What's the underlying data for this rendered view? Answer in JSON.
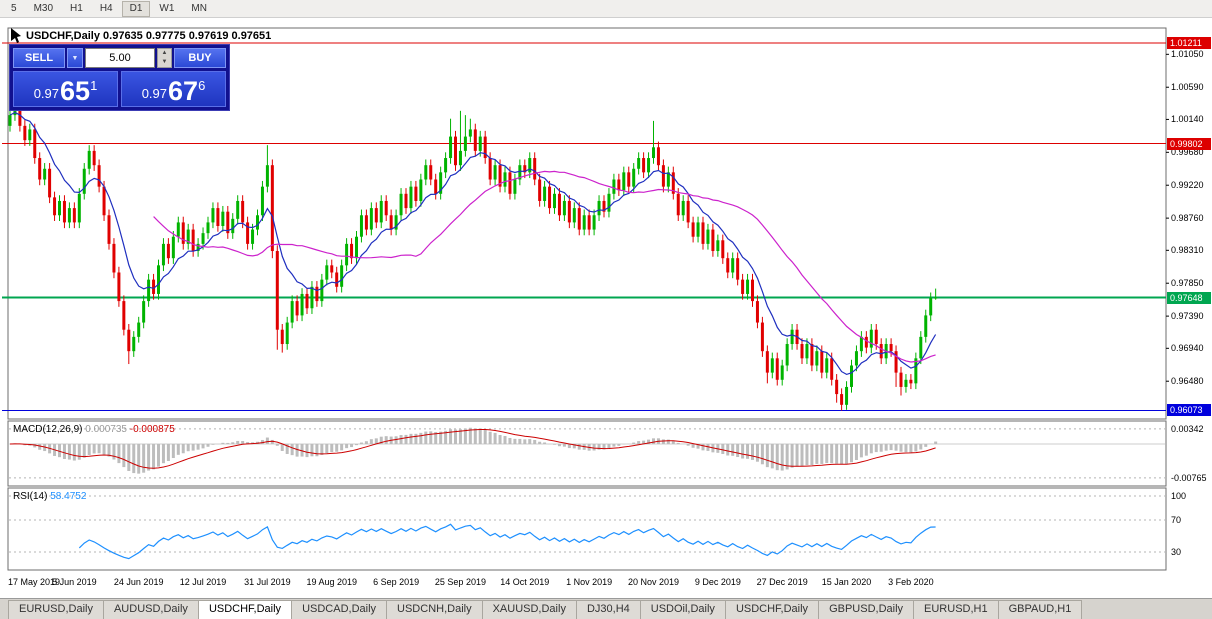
{
  "toolbar": {
    "timeframes": [
      "5",
      "M30",
      "H1",
      "H4",
      "D1",
      "W1",
      "MN"
    ],
    "active": "D1"
  },
  "chart": {
    "symbol_period": "USDCHF,Daily",
    "open": "0.97635",
    "high": "0.97775",
    "low": "0.97619",
    "close": "0.97651"
  },
  "trade_panel": {
    "sell_label": "SELL",
    "buy_label": "BUY",
    "volume": "5.00",
    "sell_price": {
      "prefix": "0.97",
      "big": "65",
      "sup": "1"
    },
    "buy_price": {
      "prefix": "0.97",
      "big": "67",
      "sup": "6"
    }
  },
  "icons": {
    "dropdown": "▼",
    "spin_up": "▲",
    "spin_down": "▼"
  },
  "price_axis": {
    "ticks": [
      "1.01050",
      "1.00590",
      "1.00140",
      "0.99680",
      "0.99220",
      "0.98760",
      "0.98310",
      "0.97850",
      "0.97390",
      "0.96940",
      "0.96480"
    ]
  },
  "hlines": [
    {
      "price": 1.01211,
      "label": "1.01211",
      "color": "#dd0000",
      "width": 1
    },
    {
      "price": 0.99802,
      "label": "0.99802",
      "color": "#dd0000",
      "width": 1
    },
    {
      "price": 0.97648,
      "label": "0.97648",
      "color": "#00a650",
      "width": 2
    },
    {
      "price": 0.96073,
      "label": "0.96073",
      "color": "#0000dd",
      "width": 1
    }
  ],
  "macd": {
    "label": "MACD(12,26,9)",
    "main_value": "0.000735",
    "signal_value": "-0.000875",
    "fast": 12,
    "slow": 26,
    "signal": 9,
    "histogram_color": "#bdbdbd",
    "signal_color": "#cc0000",
    "axis_labels": [
      {
        "value": 0.00342,
        "label": "0.00342"
      },
      {
        "value": -0.00765,
        "label": "-0.00765"
      }
    ]
  },
  "rsi": {
    "label": "RSI(14)",
    "value": "58.4752",
    "period": 14,
    "color": "#1e90ff",
    "levels": [
      {
        "value": 100,
        "label": "100"
      },
      {
        "value": 70,
        "label": "70"
      },
      {
        "value": 30,
        "label": "30"
      }
    ]
  },
  "tabs": [
    "EURUSD,Daily",
    "AUDUSD,Daily",
    "USDCHF,Daily",
    "USDCAD,Daily",
    "USDCNH,Daily",
    "XAUUSD,Daily",
    "DJ30,H4",
    "USDOil,Daily",
    "USDCHF,Daily",
    "GBPUSD,Daily",
    "EURUSD,H1",
    "GBPAUD,H1"
  ],
  "active_tab_index": 2,
  "chart_data": {
    "type": "candlestick",
    "symbol": "USDCHF",
    "period": "Daily",
    "up_color": "#00b300",
    "down_color": "#e00000",
    "ma": [
      {
        "period": 10,
        "method": "ema",
        "color": "#1f2fbf"
      },
      {
        "period": 30,
        "method": "sma",
        "color": "#cc22cc"
      }
    ],
    "x_labels": [
      {
        "i": 0,
        "label": "17 May 2019"
      },
      {
        "i": 13,
        "label": "5 Jun 2019"
      },
      {
        "i": 26,
        "label": "24 Jun 2019"
      },
      {
        "i": 39,
        "label": "12 Jul 2019"
      },
      {
        "i": 52,
        "label": "31 Jul 2019"
      },
      {
        "i": 65,
        "label": "19 Aug 2019"
      },
      {
        "i": 78,
        "label": "6 Sep 2019"
      },
      {
        "i": 91,
        "label": "25 Sep 2019"
      },
      {
        "i": 104,
        "label": "14 Oct 2019"
      },
      {
        "i": 117,
        "label": "1 Nov 2019"
      },
      {
        "i": 130,
        "label": "20 Nov 2019"
      },
      {
        "i": 143,
        "label": "9 Dec 2019"
      },
      {
        "i": 156,
        "label": "27 Dec 2019"
      },
      {
        "i": 169,
        "label": "15 Jan 2020"
      },
      {
        "i": 182,
        "label": "3 Feb 2020"
      }
    ],
    "candles": [
      [
        1.0005,
        1.0028,
        0.9997,
        1.002
      ],
      [
        1.002,
        1.0048,
        1.0012,
        1.004
      ],
      [
        1.004,
        1.0048,
        0.9997,
        1.0005
      ],
      [
        1.0005,
        1.0013,
        0.9977,
        0.9985
      ],
      [
        0.9985,
        1.0008,
        0.9977,
        1.0
      ],
      [
        1.0,
        1.0008,
        0.9952,
        0.996
      ],
      [
        0.996,
        0.9968,
        0.9922,
        0.993
      ],
      [
        0.993,
        0.9953,
        0.9922,
        0.9945
      ],
      [
        0.9945,
        0.9953,
        0.9897,
        0.9905
      ],
      [
        0.9905,
        0.9913,
        0.9872,
        0.988
      ],
      [
        0.988,
        0.9908,
        0.9872,
        0.99
      ],
      [
        0.99,
        0.9908,
        0.9862,
        0.987
      ],
      [
        0.987,
        0.9898,
        0.9862,
        0.989
      ],
      [
        0.989,
        0.9898,
        0.9862,
        0.987
      ],
      [
        0.987,
        0.9918,
        0.9862,
        0.991
      ],
      [
        0.991,
        0.9953,
        0.9902,
        0.9945
      ],
      [
        0.9945,
        0.9978,
        0.9937,
        0.997
      ],
      [
        0.997,
        0.9978,
        0.9942,
        0.995
      ],
      [
        0.995,
        0.9958,
        0.9912,
        0.992
      ],
      [
        0.992,
        0.9928,
        0.9872,
        0.988
      ],
      [
        0.988,
        0.9888,
        0.9832,
        0.984
      ],
      [
        0.984,
        0.9848,
        0.9792,
        0.98
      ],
      [
        0.98,
        0.9808,
        0.9752,
        0.976
      ],
      [
        0.976,
        0.9768,
        0.9712,
        0.972
      ],
      [
        0.972,
        0.9728,
        0.9672,
        0.969
      ],
      [
        0.969,
        0.9718,
        0.9682,
        0.971
      ],
      [
        0.971,
        0.9738,
        0.9702,
        0.973
      ],
      [
        0.973,
        0.9768,
        0.9722,
        0.976
      ],
      [
        0.976,
        0.9798,
        0.9752,
        0.979
      ],
      [
        0.979,
        0.9798,
        0.9762,
        0.977
      ],
      [
        0.977,
        0.9818,
        0.9762,
        0.981
      ],
      [
        0.981,
        0.9848,
        0.9802,
        0.984
      ],
      [
        0.984,
        0.9848,
        0.9812,
        0.982
      ],
      [
        0.982,
        0.9858,
        0.9812,
        0.985
      ],
      [
        0.985,
        0.9878,
        0.9842,
        0.987
      ],
      [
        0.987,
        0.9878,
        0.9832,
        0.984
      ],
      [
        0.984,
        0.9868,
        0.9832,
        0.986
      ],
      [
        0.986,
        0.9868,
        0.9822,
        0.983
      ],
      [
        0.983,
        0.9848,
        0.9822,
        0.984
      ],
      [
        0.984,
        0.9863,
        0.9832,
        0.9855
      ],
      [
        0.9855,
        0.9878,
        0.9847,
        0.987
      ],
      [
        0.987,
        0.9898,
        0.9862,
        0.989
      ],
      [
        0.989,
        0.9898,
        0.9857,
        0.9865
      ],
      [
        0.9865,
        0.9893,
        0.9857,
        0.9885
      ],
      [
        0.9885,
        0.9893,
        0.9847,
        0.9855
      ],
      [
        0.9855,
        0.9883,
        0.9847,
        0.9875
      ],
      [
        0.9875,
        0.9908,
        0.9867,
        0.99
      ],
      [
        0.99,
        0.9908,
        0.9862,
        0.987
      ],
      [
        0.987,
        0.9878,
        0.9832,
        0.984
      ],
      [
        0.984,
        0.9868,
        0.9832,
        0.986
      ],
      [
        0.986,
        0.9888,
        0.9852,
        0.988
      ],
      [
        0.988,
        0.9928,
        0.9872,
        0.992
      ],
      [
        0.992,
        0.9978,
        0.9912,
        0.995
      ],
      [
        0.995,
        0.9958,
        0.982,
        0.983
      ],
      [
        0.983,
        0.9838,
        0.9692,
        0.972
      ],
      [
        0.972,
        0.9728,
        0.9688,
        0.97
      ],
      [
        0.97,
        0.9738,
        0.9692,
        0.973
      ],
      [
        0.973,
        0.9768,
        0.9722,
        0.976
      ],
      [
        0.976,
        0.9768,
        0.9732,
        0.974
      ],
      [
        0.974,
        0.9778,
        0.9732,
        0.977
      ],
      [
        0.977,
        0.9778,
        0.9742,
        0.975
      ],
      [
        0.975,
        0.9788,
        0.9742,
        0.978
      ],
      [
        0.978,
        0.9788,
        0.9752,
        0.976
      ],
      [
        0.976,
        0.9798,
        0.9752,
        0.979
      ],
      [
        0.979,
        0.9818,
        0.9782,
        0.981
      ],
      [
        0.981,
        0.9818,
        0.9792,
        0.98
      ],
      [
        0.98,
        0.9808,
        0.9772,
        0.978
      ],
      [
        0.978,
        0.9818,
        0.9772,
        0.981
      ],
      [
        0.981,
        0.9848,
        0.9802,
        0.984
      ],
      [
        0.984,
        0.9848,
        0.9812,
        0.982
      ],
      [
        0.982,
        0.9858,
        0.9812,
        0.985
      ],
      [
        0.985,
        0.9888,
        0.9842,
        0.988
      ],
      [
        0.988,
        0.9888,
        0.9852,
        0.986
      ],
      [
        0.986,
        0.9898,
        0.9852,
        0.989
      ],
      [
        0.989,
        0.9898,
        0.9862,
        0.987
      ],
      [
        0.987,
        0.9908,
        0.9862,
        0.99
      ],
      [
        0.99,
        0.9908,
        0.9872,
        0.988
      ],
      [
        0.988,
        0.9888,
        0.9852,
        0.986
      ],
      [
        0.986,
        0.9888,
        0.9852,
        0.988
      ],
      [
        0.988,
        0.9918,
        0.9872,
        0.991
      ],
      [
        0.991,
        0.9918,
        0.9882,
        0.989
      ],
      [
        0.989,
        0.9928,
        0.9882,
        0.992
      ],
      [
        0.992,
        0.9928,
        0.9892,
        0.99
      ],
      [
        0.99,
        0.9938,
        0.9892,
        0.993
      ],
      [
        0.993,
        0.9958,
        0.9922,
        0.995
      ],
      [
        0.995,
        0.9958,
        0.9922,
        0.993
      ],
      [
        0.993,
        0.9938,
        0.9902,
        0.991
      ],
      [
        0.991,
        0.9948,
        0.9902,
        0.994
      ],
      [
        0.994,
        0.9968,
        0.9932,
        0.996
      ],
      [
        0.996,
        1.0015,
        0.9952,
        0.999
      ],
      [
        0.999,
        0.9998,
        0.9942,
        0.995
      ],
      [
        0.995,
        1.0026,
        0.9942,
        0.997
      ],
      [
        0.997,
        1.002,
        0.9962,
        0.999
      ],
      [
        0.999,
        1.0015,
        0.9982,
        1.0
      ],
      [
        1.0,
        1.0008,
        0.9962,
        0.997
      ],
      [
        0.997,
        0.9998,
        0.9962,
        0.999
      ],
      [
        0.999,
        0.9998,
        0.9952,
        0.996
      ],
      [
        0.996,
        0.9968,
        0.9922,
        0.993
      ],
      [
        0.993,
        0.9958,
        0.9922,
        0.995
      ],
      [
        0.995,
        0.9958,
        0.9912,
        0.992
      ],
      [
        0.992,
        0.9948,
        0.9912,
        0.994
      ],
      [
        0.994,
        0.9948,
        0.9902,
        0.991
      ],
      [
        0.991,
        0.9938,
        0.9902,
        0.993
      ],
      [
        0.993,
        0.9958,
        0.9922,
        0.995
      ],
      [
        0.995,
        0.9958,
        0.9932,
        0.994
      ],
      [
        0.994,
        0.9968,
        0.9932,
        0.996
      ],
      [
        0.996,
        0.9968,
        0.9922,
        0.993
      ],
      [
        0.993,
        0.9938,
        0.9892,
        0.99
      ],
      [
        0.99,
        0.9928,
        0.9892,
        0.992
      ],
      [
        0.992,
        0.9928,
        0.9882,
        0.989
      ],
      [
        0.989,
        0.9918,
        0.9882,
        0.991
      ],
      [
        0.991,
        0.9918,
        0.9872,
        0.988
      ],
      [
        0.988,
        0.9908,
        0.9872,
        0.99
      ],
      [
        0.99,
        0.9908,
        0.9862,
        0.987
      ],
      [
        0.987,
        0.9898,
        0.9862,
        0.989
      ],
      [
        0.989,
        0.9898,
        0.9852,
        0.986
      ],
      [
        0.986,
        0.9888,
        0.9852,
        0.988
      ],
      [
        0.988,
        0.9888,
        0.9852,
        0.986
      ],
      [
        0.986,
        0.9888,
        0.9852,
        0.988
      ],
      [
        0.988,
        0.9908,
        0.9872,
        0.99
      ],
      [
        0.99,
        0.9908,
        0.9877,
        0.9885
      ],
      [
        0.9885,
        0.9918,
        0.9877,
        0.991
      ],
      [
        0.991,
        0.9938,
        0.9902,
        0.993
      ],
      [
        0.993,
        0.9938,
        0.9907,
        0.9915
      ],
      [
        0.9915,
        0.9948,
        0.9907,
        0.994
      ],
      [
        0.994,
        0.9948,
        0.9912,
        0.992
      ],
      [
        0.992,
        0.9953,
        0.9912,
        0.9945
      ],
      [
        0.9945,
        0.9968,
        0.9937,
        0.996
      ],
      [
        0.996,
        0.9968,
        0.9932,
        0.994
      ],
      [
        0.994,
        0.9968,
        0.9932,
        0.996
      ],
      [
        0.996,
        1.0012,
        0.9952,
        0.9975
      ],
      [
        0.9975,
        0.9983,
        0.9942,
        0.995
      ],
      [
        0.995,
        0.9958,
        0.9912,
        0.992
      ],
      [
        0.992,
        0.9948,
        0.9912,
        0.994
      ],
      [
        0.994,
        0.9948,
        0.9902,
        0.991
      ],
      [
        0.991,
        0.9918,
        0.9872,
        0.988
      ],
      [
        0.988,
        0.9908,
        0.9872,
        0.99
      ],
      [
        0.99,
        0.9908,
        0.9862,
        0.987
      ],
      [
        0.987,
        0.9878,
        0.9842,
        0.985
      ],
      [
        0.985,
        0.9878,
        0.9842,
        0.987
      ],
      [
        0.987,
        0.9878,
        0.9832,
        0.984
      ],
      [
        0.984,
        0.9868,
        0.9832,
        0.986
      ],
      [
        0.986,
        0.9868,
        0.9822,
        0.983
      ],
      [
        0.983,
        0.9853,
        0.9822,
        0.9845
      ],
      [
        0.9845,
        0.9853,
        0.9812,
        0.982
      ],
      [
        0.982,
        0.9828,
        0.9792,
        0.98
      ],
      [
        0.98,
        0.9828,
        0.9792,
        0.982
      ],
      [
        0.982,
        0.9828,
        0.9782,
        0.979
      ],
      [
        0.979,
        0.9798,
        0.9762,
        0.977
      ],
      [
        0.977,
        0.9798,
        0.9762,
        0.979
      ],
      [
        0.979,
        0.9798,
        0.9752,
        0.976
      ],
      [
        0.976,
        0.9768,
        0.9722,
        0.973
      ],
      [
        0.973,
        0.9738,
        0.9682,
        0.969
      ],
      [
        0.969,
        0.9698,
        0.9645,
        0.966
      ],
      [
        0.966,
        0.9688,
        0.9652,
        0.968
      ],
      [
        0.968,
        0.9688,
        0.9642,
        0.965
      ],
      [
        0.965,
        0.9678,
        0.9642,
        0.967
      ],
      [
        0.967,
        0.9708,
        0.9662,
        0.97
      ],
      [
        0.97,
        0.9728,
        0.9692,
        0.972
      ],
      [
        0.972,
        0.9728,
        0.9692,
        0.97
      ],
      [
        0.97,
        0.9708,
        0.9672,
        0.968
      ],
      [
        0.968,
        0.9708,
        0.9672,
        0.97
      ],
      [
        0.97,
        0.9708,
        0.9662,
        0.967
      ],
      [
        0.967,
        0.9698,
        0.9662,
        0.969
      ],
      [
        0.969,
        0.9698,
        0.9652,
        0.966
      ],
      [
        0.966,
        0.9688,
        0.9652,
        0.968
      ],
      [
        0.968,
        0.9688,
        0.9642,
        0.965
      ],
      [
        0.965,
        0.9658,
        0.9618,
        0.963
      ],
      [
        0.963,
        0.9638,
        0.9607,
        0.9615
      ],
      [
        0.9615,
        0.9648,
        0.9608,
        0.964
      ],
      [
        0.964,
        0.9678,
        0.9632,
        0.967
      ],
      [
        0.967,
        0.9698,
        0.9662,
        0.969
      ],
      [
        0.969,
        0.9718,
        0.9682,
        0.971
      ],
      [
        0.971,
        0.9718,
        0.9687,
        0.9695
      ],
      [
        0.9695,
        0.9728,
        0.9687,
        0.972
      ],
      [
        0.972,
        0.9728,
        0.9692,
        0.97
      ],
      [
        0.97,
        0.9708,
        0.9672,
        0.968
      ],
      [
        0.968,
        0.9708,
        0.9672,
        0.97
      ],
      [
        0.97,
        0.9708,
        0.9682,
        0.969
      ],
      [
        0.969,
        0.9698,
        0.964,
        0.966
      ],
      [
        0.966,
        0.9668,
        0.9628,
        0.964
      ],
      [
        0.964,
        0.9658,
        0.9632,
        0.965
      ],
      [
        0.965,
        0.9658,
        0.9637,
        0.9645
      ],
      [
        0.9645,
        0.9688,
        0.9637,
        0.968
      ],
      [
        0.968,
        0.9718,
        0.9672,
        0.971
      ],
      [
        0.971,
        0.9748,
        0.9702,
        0.974
      ],
      [
        0.974,
        0.9772,
        0.9732,
        0.9764
      ],
      [
        0.97635,
        0.97775,
        0.97619,
        0.97651
      ]
    ]
  }
}
